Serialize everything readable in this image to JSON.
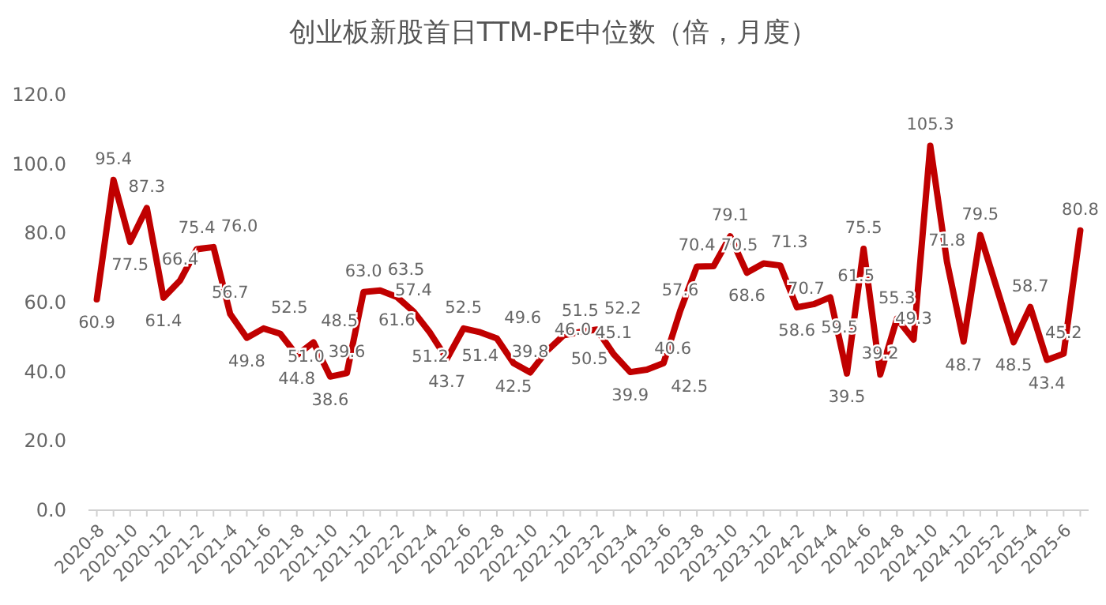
{
  "chart_data": {
    "type": "line",
    "title": "创业板新股首日TTM-PE中位数（倍，月度）",
    "categories": [
      "2020-8",
      null,
      "2020-10",
      null,
      "2020-12",
      null,
      "2021-2",
      null,
      "2021-4",
      null,
      "2021-6",
      null,
      "2021-8",
      null,
      "2021-10",
      null,
      "2021-12",
      null,
      "2022-2",
      null,
      "2022-4",
      null,
      "2022-6",
      null,
      "2022-8",
      null,
      "2022-10",
      null,
      "2022-12",
      null,
      "2023-2",
      null,
      "2023-4",
      null,
      "2023-6",
      null,
      "2023-8",
      null,
      "2023-10",
      null,
      "2023-12",
      null,
      "2024-2",
      null,
      "2024-4",
      null,
      "2024-6",
      null,
      "2024-8",
      null,
      "2024-10",
      null,
      "2024-12",
      null,
      "2025-2",
      null,
      "2025-4",
      null,
      "2025-6",
      null
    ],
    "series": [
      {
        "color": "#c00000",
        "values": [
          60.9,
          95.4,
          77.5,
          87.3,
          61.4,
          66.4,
          75.4,
          76.0,
          56.7,
          49.8,
          52.5,
          51.0,
          44.8,
          48.5,
          38.6,
          39.6,
          63.0,
          63.5,
          61.6,
          57.4,
          51.2,
          43.7,
          52.5,
          51.4,
          49.6,
          42.5,
          39.8,
          46.0,
          50.5,
          51.5,
          52.2,
          45.1,
          39.9,
          40.6,
          42.5,
          57.6,
          70.4,
          70.5,
          79.1,
          68.6,
          71.3,
          70.7,
          58.6,
          59.5,
          61.5,
          39.5,
          75.5,
          39.2,
          55.3,
          49.3,
          105.3,
          71.8,
          48.7,
          79.5,
          64.0,
          48.5,
          58.7,
          43.4,
          45.2,
          80.8
        ],
        "value_labels": [
          "60.9",
          "95.4",
          "77.5",
          "87.3",
          "61.4",
          "66.4",
          "75.4",
          "76.0",
          "56.7",
          "49.8",
          "52.5",
          "51.0",
          "44.8",
          "48.5",
          "38.6",
          "39.6",
          "63.0",
          "63.5",
          "61.6",
          "57.4",
          "51.2",
          "43.7",
          "52.5",
          "51.4",
          "49.6",
          "42.5",
          "39.8",
          "46.0",
          "50.5",
          "51.5",
          "52.2",
          "45.1",
          "39.9",
          "40.6",
          "42.5",
          "57.6",
          "70.4",
          "70.5",
          "79.1",
          "68.6",
          "71.3",
          "70.7",
          "58.6",
          "59.5",
          "61.5",
          "39.5",
          "75.5",
          "39.2",
          "55.3",
          "49.3",
          "105.3",
          "71.8",
          "48.7",
          "79.5",
          null,
          "48.5",
          "58.7",
          "43.4",
          "45.2",
          "80.8"
        ]
      }
    ],
    "ylim": [
      0,
      120
    ],
    "yticks": [
      {
        "value": 0,
        "label": "0.0"
      },
      {
        "value": 20,
        "label": "20.0"
      },
      {
        "value": 40,
        "label": "40.0"
      },
      {
        "value": 60,
        "label": "60.0"
      },
      {
        "value": 80,
        "label": "80.0"
      },
      {
        "value": 100,
        "label": "100.0"
      },
      {
        "value": 120,
        "label": "120.0"
      }
    ],
    "grid": false,
    "marker": "none",
    "line_style": "solid"
  }
}
